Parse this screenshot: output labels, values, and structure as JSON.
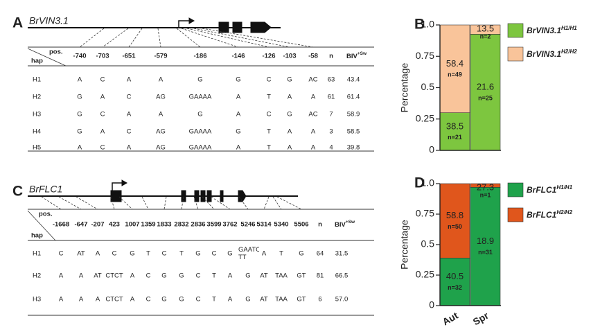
{
  "panel_a": {
    "label": "A",
    "gene": "BrVIN3.1",
    "table": {
      "pos_label": "pos.",
      "hap_label": "hap",
      "positions": [
        "-740",
        "-703",
        "-651",
        "-579",
        "-186",
        "-146",
        "-126",
        "-103",
        "-58"
      ],
      "n_label": "n",
      "biv_label": "BIV",
      "biv_sup": "+Sw",
      "rows": [
        [
          "H1",
          "A",
          "C",
          "A",
          "A",
          "G",
          "G",
          "C",
          "G",
          "AC",
          "63",
          "43.4"
        ],
        [
          "H2",
          "G",
          "A",
          "C",
          "AG",
          "GAAAA",
          "A",
          "T",
          "A",
          "A",
          "61",
          "61.4"
        ],
        [
          "H3",
          "G",
          "C",
          "A",
          "A",
          "G",
          "A",
          "C",
          "G",
          "AC",
          "7",
          "58.9"
        ],
        [
          "H4",
          "G",
          "A",
          "C",
          "AG",
          "GAAAA",
          "G",
          "T",
          "A",
          "A",
          "3",
          "58.5"
        ],
        [
          "H5",
          "A",
          "C",
          "A",
          "AG",
          "GAAAA",
          "A",
          "T",
          "A",
          "A",
          "4",
          "39.8"
        ]
      ]
    }
  },
  "panel_c": {
    "label": "C",
    "gene": "BrFLC1",
    "table": {
      "pos_label": "pos.",
      "hap_label": "hap",
      "positions": [
        "-1668",
        "-647",
        "-207",
        "423",
        "1007",
        "1359",
        "1833",
        "2832",
        "2836",
        "3599",
        "3762",
        "5246",
        "5314",
        "5340",
        "5506"
      ],
      "n_label": "n",
      "biv_label": "BIV",
      "biv_sup": "+Sw",
      "rows": [
        [
          "H1",
          "C",
          "AT",
          "A",
          "C",
          "G",
          "T",
          "C",
          "T",
          "G",
          "C",
          "G",
          "GAATC TT",
          "A",
          "T",
          "G",
          "64",
          "31.5"
        ],
        [
          "H2",
          "A",
          "A",
          "AT",
          "CTCT",
          "A",
          "C",
          "G",
          "G",
          "C",
          "T",
          "A",
          "G",
          "AT",
          "TAA",
          "GT",
          "81",
          "66.5"
        ],
        [
          "H3",
          "A",
          "A",
          "A",
          "CTCT",
          "A",
          "C",
          "G",
          "G",
          "C",
          "T",
          "A",
          "G",
          "AT",
          "TAA",
          "GT",
          "6",
          "57.0"
        ]
      ]
    }
  },
  "chart_data": [
    {
      "type": "bar",
      "panel_label": "B",
      "y_label": "Percentage",
      "categories": [
        null,
        null
      ],
      "ylim": [
        0,
        1
      ],
      "yticks": [
        0,
        0.25,
        0.5,
        0.75,
        {
          "value": 1,
          "label": "1.0"
        }
      ],
      "series": [
        {
          "name": "BrVIN3.1",
          "name_sup": "H1/H1",
          "color": "#7dc63f",
          "values": [
            0.3,
            0.926
          ],
          "biv_labels": [
            "38.5",
            "21.6"
          ],
          "n_labels": [
            "n=21",
            "n=25"
          ]
        },
        {
          "name": "BrVIN3.1",
          "name_sup": "H2/H2",
          "color": "#f9c49a",
          "values": [
            0.7,
            0.074
          ],
          "biv_labels": [
            "58.4",
            "13.5"
          ],
          "n_labels": [
            "n=49",
            "n=2"
          ]
        }
      ]
    },
    {
      "type": "bar",
      "panel_label": "D",
      "y_label": "Percentage",
      "categories": [
        "Aut",
        "Spr"
      ],
      "ylim": [
        0,
        1
      ],
      "yticks": [
        0,
        0.25,
        0.5,
        0.75,
        {
          "value": 1,
          "label": "1.0"
        }
      ],
      "series": [
        {
          "name": "BrFLC1",
          "name_sup": "H1/H1",
          "color": "#1fa24b",
          "values": [
            0.39,
            0.97
          ],
          "biv_labels": [
            "40.5",
            "18.9"
          ],
          "n_labels": [
            "n=32",
            "n=31"
          ]
        },
        {
          "name": "BrFLC1",
          "name_sup": "H2/H2",
          "color": "#e0561c",
          "values": [
            0.61,
            0.03
          ],
          "biv_labels": [
            "58.8",
            "27.3"
          ],
          "n_labels": [
            "n=50",
            "n=1"
          ]
        }
      ]
    }
  ]
}
